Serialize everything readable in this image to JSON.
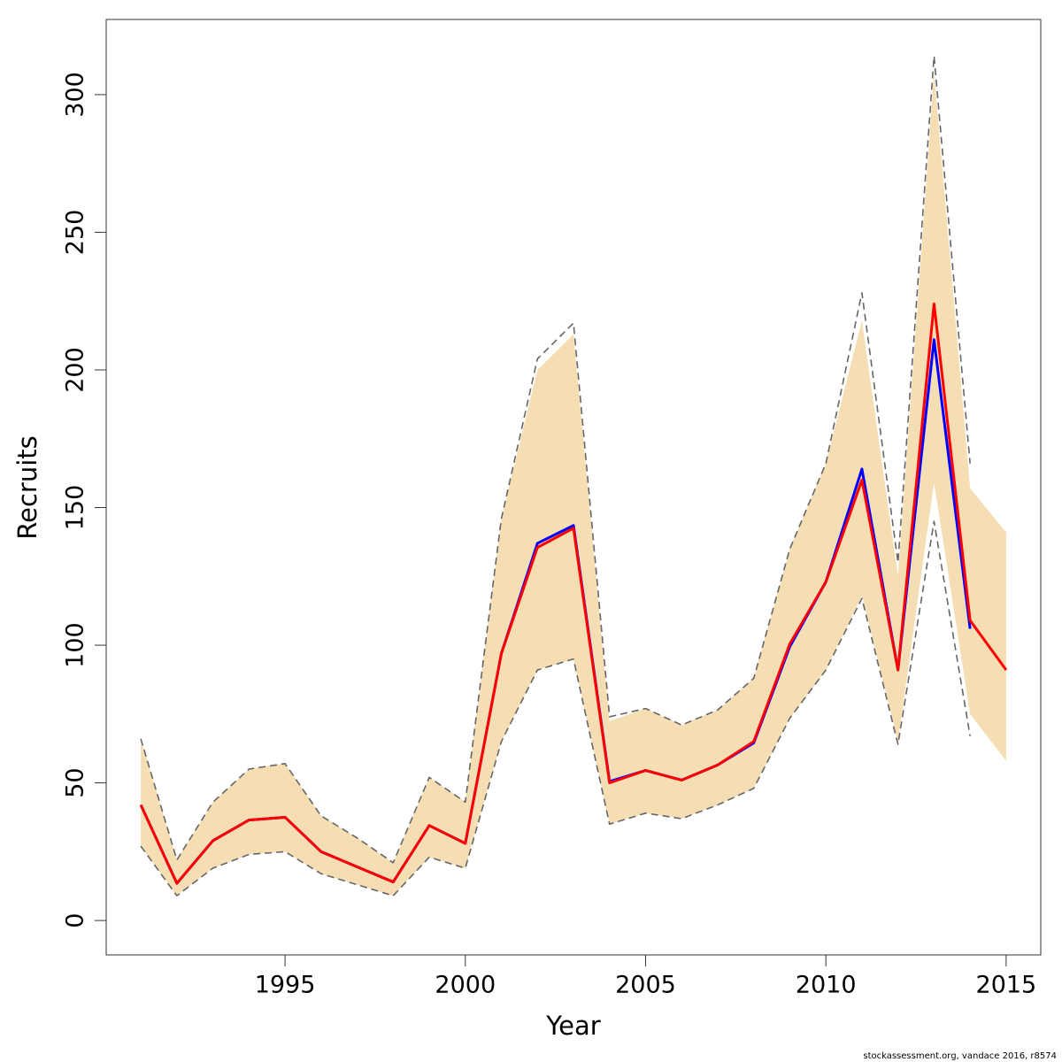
{
  "chart_data": {
    "type": "line",
    "xlabel": "Year",
    "ylabel": "Recruits",
    "footer": "stockassessment.org, vandace  2016, r8574",
    "x": [
      1991,
      1992,
      1993,
      1994,
      1995,
      1996,
      1997,
      1998,
      1999,
      2000,
      2001,
      2002,
      2003,
      2004,
      2005,
      2006,
      2007,
      2008,
      2009,
      2010,
      2011,
      2012,
      2013,
      2014,
      2015
    ],
    "band": {
      "color": "#f5deb3",
      "upper": [
        66,
        22,
        43,
        55,
        57,
        38,
        30,
        21,
        52,
        43,
        146,
        200,
        213,
        72.5,
        77,
        71,
        76.5,
        88,
        135,
        166,
        218,
        125,
        308,
        157,
        141
      ],
      "lower": [
        27,
        9,
        19,
        24,
        25,
        17,
        13,
        9,
        23,
        19,
        65,
        91,
        95,
        35,
        39,
        37,
        42,
        48,
        73.5,
        91,
        118,
        65,
        159,
        75,
        58
      ]
    },
    "series": [
      {
        "color": "#666666",
        "dashed": true,
        "values": [
          66,
          22,
          43,
          55,
          57,
          38,
          30,
          21,
          52,
          43,
          146,
          204,
          217,
          74,
          77,
          71,
          76.5,
          88,
          135,
          166,
          228,
          130,
          314,
          166,
          null
        ]
      },
      {
        "color": "#666666",
        "dashed": true,
        "values": [
          27,
          9,
          19,
          24,
          25,
          17,
          13,
          9,
          23,
          19,
          65,
          91,
          95,
          35,
          39,
          37,
          42,
          48,
          73.5,
          91,
          117,
          64,
          145,
          67,
          null
        ]
      },
      {
        "color": "#0000ff",
        "dashed": false,
        "values": [
          42,
          13.5,
          29,
          36.5,
          37.5,
          25,
          19.5,
          14,
          34.5,
          28,
          97,
          137,
          143.5,
          50.5,
          54.5,
          51,
          56.5,
          64.5,
          99.5,
          123,
          164,
          91,
          211,
          106,
          null
        ]
      },
      {
        "color": "#ff0000",
        "dashed": false,
        "values": [
          42,
          13.5,
          29,
          36.5,
          37.5,
          25,
          19.5,
          14,
          34.5,
          28,
          97,
          135.5,
          142.5,
          50,
          54.5,
          51,
          56.5,
          65,
          100.5,
          123,
          160,
          91,
          224,
          109,
          91
        ]
      }
    ],
    "xlim": [
      1990.04,
      2015.96
    ],
    "ylim": [
      -12.5,
      327.3
    ],
    "xticks": [
      1995,
      2000,
      2005,
      2010,
      2015
    ],
    "yticks": [
      0,
      50,
      100,
      150,
      200,
      250,
      300
    ]
  }
}
